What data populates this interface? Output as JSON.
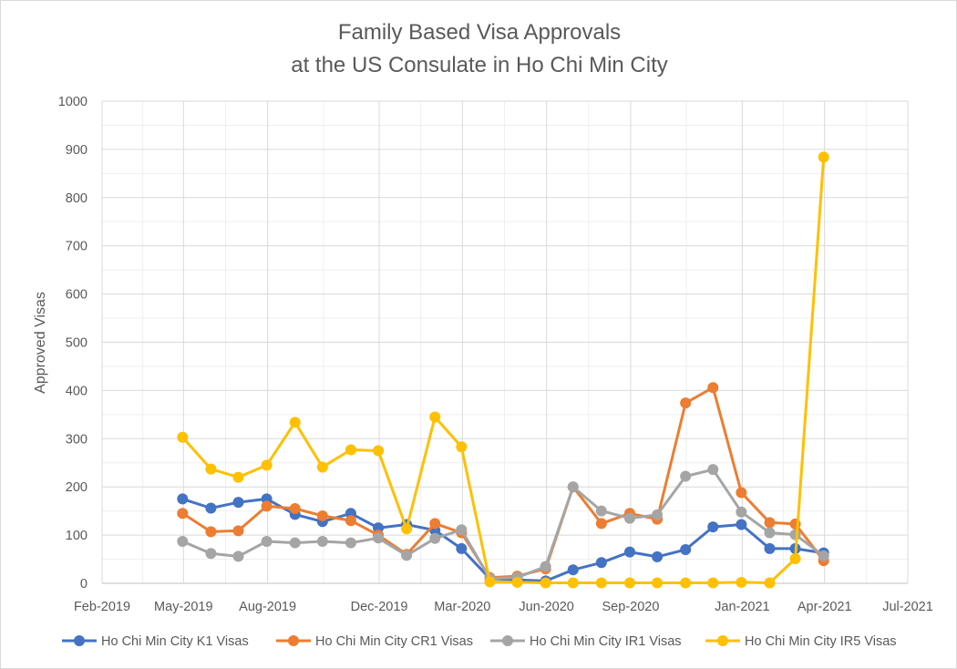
{
  "chart_data": {
    "type": "line",
    "title_lines": [
      "Family Based Visa Approvals",
      "at the US Consulate in Ho Chi Min City"
    ],
    "xlabel": "",
    "ylabel": "Approved Visas",
    "ylim": [
      0,
      1000
    ],
    "y_ticks": [
      0,
      100,
      200,
      300,
      400,
      500,
      600,
      700,
      800,
      900,
      1000
    ],
    "xlim": [
      "2019-02-01",
      "2021-07-01"
    ],
    "x_ticks": [
      {
        "date": "2019-02-01",
        "label": "Feb-2019"
      },
      {
        "date": "2019-05-01",
        "label": "May-2019"
      },
      {
        "date": "2019-08-01",
        "label": "Aug-2019"
      },
      {
        "date": "2019-12-01",
        "label": "Dec-2019"
      },
      {
        "date": "2020-03-01",
        "label": "Mar-2020"
      },
      {
        "date": "2020-06-01",
        "label": "Jun-2020"
      },
      {
        "date": "2020-09-01",
        "label": "Sep-2020"
      },
      {
        "date": "2021-01-01",
        "label": "Jan-2021"
      },
      {
        "date": "2021-04-01",
        "label": "Apr-2021"
      },
      {
        "date": "2021-07-01",
        "label": "Jul-2021"
      }
    ],
    "x": [
      "2019-04-30",
      "2019-05-31",
      "2019-06-30",
      "2019-07-31",
      "2019-08-31",
      "2019-09-30",
      "2019-10-31",
      "2019-11-30",
      "2019-12-31",
      "2020-01-31",
      "2020-02-29",
      "2020-03-31",
      "2020-04-30",
      "2020-05-31",
      "2020-06-30",
      "2020-07-31",
      "2020-08-31",
      "2020-09-30",
      "2020-10-31",
      "2020-11-30",
      "2020-12-31",
      "2021-01-31",
      "2021-02-28",
      "2021-03-31"
    ],
    "grid": true,
    "legend_position": "bottom",
    "series": [
      {
        "name": "Ho Chi Min City  K1 Visas",
        "color": "#4472c4",
        "values": [
          175,
          156,
          168,
          175,
          143,
          128,
          145,
          115,
          122,
          110,
          72,
          10,
          7,
          5,
          28,
          43,
          65,
          55,
          70,
          117,
          122,
          72,
          72,
          63
        ]
      },
      {
        "name": "Ho Chi Min City  CR1 Visas",
        "color": "#ed7d31",
        "values": [
          145,
          107,
          109,
          160,
          155,
          140,
          130,
          100,
          60,
          124,
          105,
          12,
          15,
          30,
          200,
          124,
          145,
          133,
          374,
          406,
          188,
          126,
          123,
          47
        ]
      },
      {
        "name": "Ho Chi Min City  IR1 Visas",
        "color": "#a5a5a5",
        "values": [
          87,
          62,
          56,
          87,
          84,
          87,
          84,
          94,
          58,
          93,
          111,
          10,
          12,
          35,
          200,
          150,
          135,
          142,
          222,
          236,
          148,
          105,
          101,
          57
        ]
      },
      {
        "name": "Ho Chi Min City  IR5 Visas",
        "color": "#ffc000",
        "values": [
          303,
          237,
          220,
          245,
          334,
          241,
          277,
          275,
          113,
          345,
          283,
          3,
          2,
          1,
          1,
          1,
          1,
          1,
          1,
          1,
          2,
          1,
          51,
          884
        ]
      }
    ]
  }
}
